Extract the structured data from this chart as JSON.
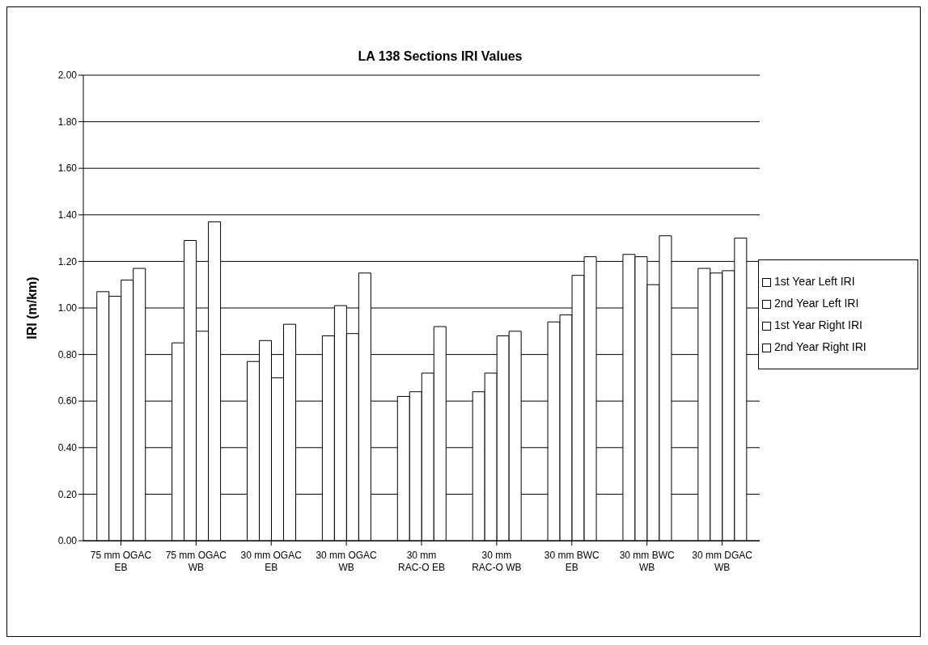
{
  "chart_data": {
    "type": "bar",
    "title": "LA 138 Sections IRI Values",
    "ylabel": "IRI (m/km)",
    "categories": [
      "75 mm OGAC EB",
      "75 mm OGAC WB",
      "30 mm OGAC EB",
      "30 mm OGAC WB",
      "30 mm RAC-O EB",
      "30 mm RAC-O WB",
      "30 mm BWC EB",
      "30 mm BWC WB",
      "30 mm DGAC WB"
    ],
    "series": [
      {
        "name": "1st Year Left IRI",
        "color": "#ffffff",
        "values": [
          1.07,
          0.85,
          0.77,
          0.88,
          0.62,
          0.64,
          0.94,
          1.23,
          1.17
        ]
      },
      {
        "name": "2nd Year Left IRI",
        "color": "#ffffff",
        "values": [
          1.05,
          1.29,
          0.86,
          1.01,
          0.64,
          0.72,
          0.97,
          1.22,
          1.15
        ]
      },
      {
        "name": "1st Year Right IRI",
        "color": "#ffffff",
        "values": [
          1.12,
          0.9,
          0.7,
          0.89,
          0.72,
          0.88,
          1.14,
          1.1,
          1.16
        ]
      },
      {
        "name": "2nd Year Right IRI",
        "color": "#ffffff",
        "values": [
          1.17,
          1.37,
          0.93,
          1.15,
          0.92,
          0.9,
          1.22,
          1.31,
          1.3
        ]
      }
    ],
    "ylim": [
      0,
      2
    ],
    "yticks": [
      {
        "value": 0,
        "label": "0.00"
      },
      {
        "value": 0.2,
        "label": "0.20"
      },
      {
        "value": 0.4,
        "label": "0.40"
      },
      {
        "value": 0.6,
        "label": "0.60"
      },
      {
        "value": 0.8,
        "label": "0.80"
      },
      {
        "value": 1,
        "label": "1.00"
      },
      {
        "value": 1.2,
        "label": "1.20"
      },
      {
        "value": 1.4,
        "label": "1.40"
      },
      {
        "value": 1.6,
        "label": "1.60"
      },
      {
        "value": 1.8,
        "label": "1.80"
      },
      {
        "value": 2,
        "label": "2.00"
      }
    ],
    "grid": "y",
    "legend": "right"
  }
}
